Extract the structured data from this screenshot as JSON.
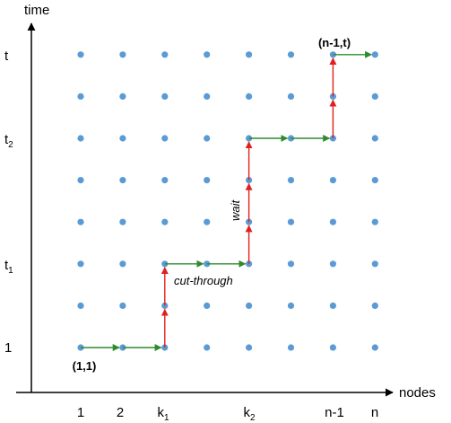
{
  "axes": {
    "x_title": "nodes",
    "y_title": "time",
    "x_ticks": [
      {
        "main": "1",
        "sub": ""
      },
      {
        "main": "2",
        "sub": ""
      },
      {
        "main": "k",
        "sub": "1"
      },
      {
        "main": "k",
        "sub": "2"
      },
      {
        "main": "n-1",
        "sub": ""
      },
      {
        "main": "n",
        "sub": ""
      }
    ],
    "y_ticks": [
      {
        "main": "1",
        "sub": ""
      },
      {
        "main": "t",
        "sub": "1"
      },
      {
        "main": "t",
        "sub": "2"
      },
      {
        "main": "t",
        "sub": ""
      }
    ]
  },
  "grid": {
    "columns": 8,
    "rows": 8,
    "point_color": "#5B9BD5"
  },
  "path": {
    "horizontal_color": "#2E8B2E",
    "vertical_color": "#E02020",
    "segments": [
      {
        "kind": "horizontal",
        "from": [
          1,
          1
        ],
        "to": [
          2,
          1
        ]
      },
      {
        "kind": "horizontal",
        "from": [
          2,
          1
        ],
        "to": [
          3,
          1
        ]
      },
      {
        "kind": "vertical",
        "from": [
          3,
          1
        ],
        "to": [
          3,
          2
        ]
      },
      {
        "kind": "vertical",
        "from": [
          3,
          2
        ],
        "to": [
          3,
          3
        ]
      },
      {
        "kind": "horizontal",
        "from": [
          3,
          3
        ],
        "to": [
          4,
          3
        ]
      },
      {
        "kind": "horizontal",
        "from": [
          4,
          3
        ],
        "to": [
          5,
          3
        ]
      },
      {
        "kind": "vertical",
        "from": [
          5,
          3
        ],
        "to": [
          5,
          4
        ]
      },
      {
        "kind": "vertical",
        "from": [
          5,
          4
        ],
        "to": [
          5,
          5
        ]
      },
      {
        "kind": "vertical",
        "from": [
          5,
          5
        ],
        "to": [
          5,
          6
        ]
      },
      {
        "kind": "horizontal",
        "from": [
          5,
          6
        ],
        "to": [
          6,
          6
        ]
      },
      {
        "kind": "horizontal",
        "from": [
          6,
          6
        ],
        "to": [
          7,
          6
        ]
      },
      {
        "kind": "vertical",
        "from": [
          7,
          6
        ],
        "to": [
          7,
          7
        ]
      },
      {
        "kind": "vertical",
        "from": [
          7,
          7
        ],
        "to": [
          7,
          8
        ]
      },
      {
        "kind": "horizontal",
        "from": [
          7,
          8
        ],
        "to": [
          8,
          8
        ]
      }
    ]
  },
  "annotations": {
    "start": "(1,1)",
    "end": "(n-1,t)",
    "cut_through": "cut-through",
    "wait": "wait"
  }
}
